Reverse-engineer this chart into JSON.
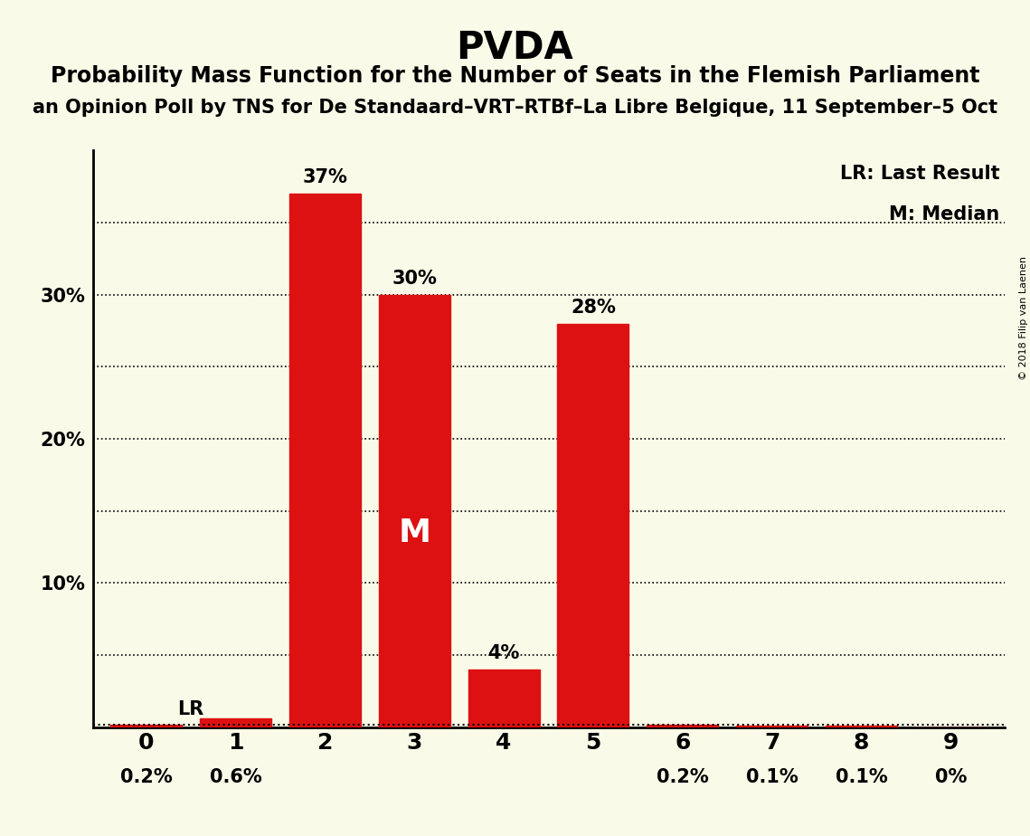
{
  "title": "PVDA",
  "subtitle1": "Probability Mass Function for the Number of Seats in the Flemish Parliament",
  "subtitle2": "an Opinion Poll by TNS for De Standaard–VRT–RTBf–La Libre Belgique, 11 September–5 Oct",
  "copyright": "© 2018 Filip van Laenen",
  "categories": [
    0,
    1,
    2,
    3,
    4,
    5,
    6,
    7,
    8,
    9
  ],
  "values": [
    0.002,
    0.006,
    0.37,
    0.3,
    0.04,
    0.28,
    0.002,
    0.001,
    0.001,
    0.0
  ],
  "bar_color": "#dd1111",
  "background_color": "#fafae8",
  "label_values": [
    "0.2%",
    "0.6%",
    "37%",
    "30%",
    "4%",
    "28%",
    "0.2%",
    "0.1%",
    "0.1%",
    "0%"
  ],
  "lr_value": 0.002,
  "median_seat": 3,
  "median_label": "M",
  "lr_label": "LR",
  "legend_lr": "LR: Last Result",
  "legend_m": "M: Median",
  "ylim": [
    0,
    0.4
  ],
  "yticks": [
    0.0,
    0.1,
    0.2,
    0.3
  ],
  "ytick_labels": [
    "",
    "10%",
    "20%",
    "30%"
  ],
  "grid_values": [
    0.05,
    0.1,
    0.15,
    0.2,
    0.25,
    0.3,
    0.35
  ],
  "title_fontsize": 30,
  "subtitle1_fontsize": 17,
  "subtitle2_fontsize": 15,
  "bar_label_fontsize": 15,
  "axis_tick_fontsize": 18,
  "ytick_fontsize": 15,
  "legend_fontsize": 15,
  "median_fontsize": 26,
  "lr_fontsize": 15
}
